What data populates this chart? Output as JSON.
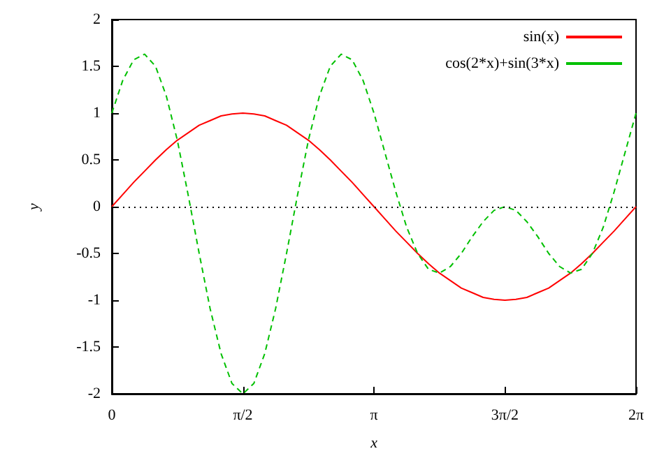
{
  "chart_data": {
    "type": "line",
    "xlabel": "x",
    "ylabel": "y",
    "x": [
      0,
      0.131,
      0.262,
      0.393,
      0.524,
      0.654,
      0.785,
      0.916,
      1.047,
      1.178,
      1.309,
      1.44,
      1.571,
      1.702,
      1.833,
      1.963,
      2.094,
      2.225,
      2.356,
      2.487,
      2.618,
      2.749,
      2.88,
      3.011,
      3.142,
      3.272,
      3.403,
      3.534,
      3.665,
      3.796,
      3.927,
      4.058,
      4.189,
      4.32,
      4.451,
      4.581,
      4.712,
      4.843,
      4.974,
      5.105,
      5.236,
      5.367,
      5.498,
      5.629,
      5.76,
      5.89,
      6.021,
      6.152,
      6.283
    ],
    "series": [
      {
        "name": "sin(x)",
        "color": "#ff0000",
        "line_style": "solid",
        "values": [
          0,
          0.13,
          0.26,
          0.38,
          0.5,
          0.61,
          0.71,
          0.79,
          0.87,
          0.92,
          0.97,
          0.99,
          1,
          0.99,
          0.97,
          0.92,
          0.87,
          0.79,
          0.71,
          0.61,
          0.5,
          0.38,
          0.26,
          0.13,
          0,
          -0.13,
          -0.26,
          -0.38,
          -0.5,
          -0.61,
          -0.71,
          -0.79,
          -0.87,
          -0.92,
          -0.97,
          -0.99,
          -1,
          -0.99,
          -0.97,
          -0.92,
          -0.87,
          -0.79,
          -0.71,
          -0.61,
          -0.5,
          -0.38,
          -0.26,
          -0.13,
          0
        ]
      },
      {
        "name": "cos(2*x)+sin(3*x)",
        "color": "#00c000",
        "line_style": "dashed",
        "values": [
          1,
          1.35,
          1.57,
          1.63,
          1.5,
          1.18,
          0.71,
          0.12,
          -0.5,
          -1.09,
          -1.57,
          -1.89,
          -2,
          -1.89,
          -1.57,
          -1.09,
          -0.5,
          0.12,
          0.71,
          1.18,
          1.5,
          1.63,
          1.57,
          1.35,
          1,
          0.58,
          0.16,
          -0.22,
          -0.5,
          -0.67,
          -0.71,
          -0.64,
          -0.5,
          -0.32,
          -0.16,
          -0.04,
          0,
          -0.04,
          -0.16,
          -0.32,
          -0.5,
          -0.64,
          -0.71,
          -0.67,
          -0.5,
          -0.22,
          0.16,
          0.58,
          1
        ]
      }
    ],
    "xlim": [
      0,
      6.283
    ],
    "xticks": [
      0,
      {
        "value": 1.571,
        "label": "π/2"
      },
      {
        "value": 3.142,
        "label": "π"
      },
      {
        "value": 4.712,
        "label": "3π/2"
      },
      {
        "value": 6.283,
        "label": "2π"
      }
    ],
    "ylim": [
      -2,
      2
    ],
    "yticks": [
      -2,
      -1.5,
      -1,
      -0.5,
      0,
      0.5,
      1,
      1.5,
      2
    ],
    "ref_lines": [
      {
        "axis": "y",
        "value": 0,
        "color": "#000000",
        "line_style": "dotted"
      }
    ],
    "legend": "top right",
    "grid": false,
    "marker": "none"
  }
}
